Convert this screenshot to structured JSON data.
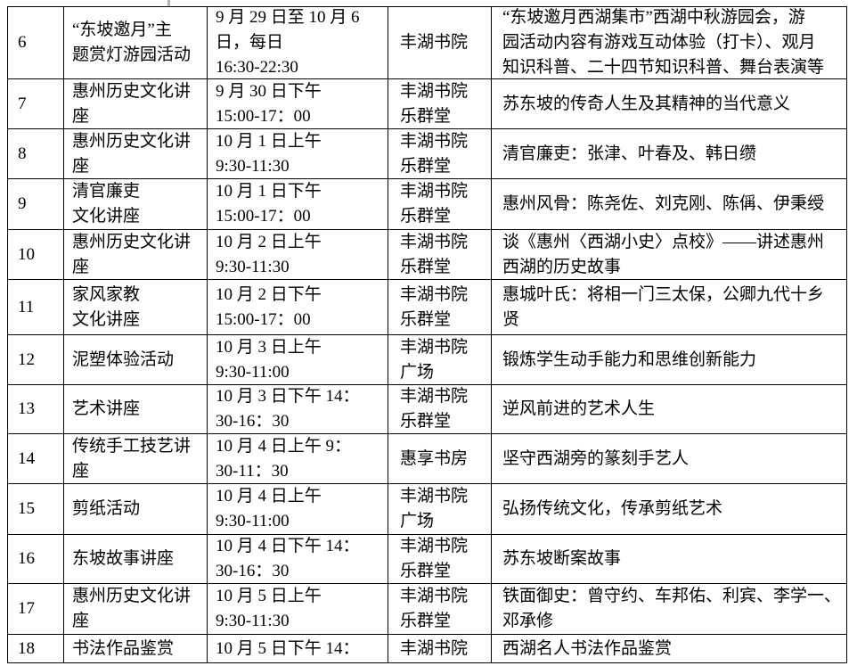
{
  "colors": {
    "background": "#ffffff",
    "text": "#000000",
    "table_border": "#000000"
  },
  "table": {
    "rows": [
      {
        "num": "6",
        "activity": [
          "“东坡邀月”主",
          "题赏灯游园活动"
        ],
        "time": [
          "9 月 29 日至 10 月 6",
          "日，每日",
          "16:30-22:30"
        ],
        "place": [
          "丰湖书院"
        ],
        "desc": [
          "“东坡邀月西湖集市”西湖中秋游园会，游",
          "园活动内容有游戏互动体验（打卡）、观月",
          "知识科普、二十四节知识科普、舞台表演等"
        ]
      },
      {
        "num": "7",
        "activity": [
          "惠州历史文化讲",
          "座"
        ],
        "time": [
          "9 月 30 日下午",
          "15:00-17：00"
        ],
        "place": [
          "丰湖书院",
          "乐群堂"
        ],
        "desc": [
          "苏东坡的传奇人生及其精神的当代意义"
        ]
      },
      {
        "num": "8",
        "activity": [
          "惠州历史文化讲",
          "座"
        ],
        "time": [
          "10 月 1 日上午",
          "9:30-11:30"
        ],
        "place": [
          "丰湖书院",
          "乐群堂"
        ],
        "desc": [
          "清官廉吏：张津、叶春及、韩日缵"
        ]
      },
      {
        "num": "9",
        "activity": [
          "清官廉吏",
          "文化讲座"
        ],
        "time": [
          "10 月 1 日下午",
          "15:00-17：00"
        ],
        "place": [
          "丰湖书院",
          "乐群堂"
        ],
        "desc": [
          "惠州风骨：陈尧佐、刘克刚、陈偁、伊秉绶"
        ]
      },
      {
        "num": "10",
        "activity": [
          "惠州历史文化讲",
          "座"
        ],
        "time": [
          "10 月 2 日上午",
          "9:30-11:30"
        ],
        "place": [
          "丰湖书院",
          "乐群堂"
        ],
        "desc": [
          "谈《惠州〈西湖小史〉点校》——讲述惠州",
          "西湖的历史故事"
        ]
      },
      {
        "num": "11",
        "activity": [
          "家风家教",
          "文化讲座"
        ],
        "time": [
          "10 月 2 日下午",
          "15:00-17：00"
        ],
        "place": [
          "丰湖书院",
          "乐群堂"
        ],
        "desc": [
          "惠城叶氏：将相一门三太保，公卿九代十乡",
          "贤"
        ]
      },
      {
        "num": "12",
        "activity": [
          "泥塑体验活动"
        ],
        "time": [
          "10 月 3 日上午",
          "9:30-11:00"
        ],
        "place": [
          "丰湖书院",
          "广场"
        ],
        "desc": [
          "锻炼学生动手能力和思维创新能力"
        ]
      },
      {
        "num": "13",
        "activity": [
          "艺术讲座"
        ],
        "time": [
          "10 月 3 日下午 14：",
          "30-16：30"
        ],
        "place": [
          "丰湖书院",
          "乐群堂"
        ],
        "desc": [
          "逆风前进的艺术人生"
        ]
      },
      {
        "num": "14",
        "activity": [
          "传统手工技艺讲",
          "座"
        ],
        "time": [
          "10 月 4 日上午 9：",
          "30-11：30"
        ],
        "place": [
          "惠享书房"
        ],
        "desc": [
          "坚守西湖旁的篆刻手艺人"
        ]
      },
      {
        "num": "15",
        "activity": [
          "剪纸活动"
        ],
        "time": [
          "10 月 4 日上午",
          "9:30-11:00"
        ],
        "place": [
          "丰湖书院",
          "广场"
        ],
        "desc": [
          "弘扬传统文化，传承剪纸艺术"
        ]
      },
      {
        "num": "16",
        "activity": [
          "东坡故事讲座"
        ],
        "time": [
          "10 月 4 日下午 14：",
          "30-16：30"
        ],
        "place": [
          "丰湖书院",
          "乐群堂"
        ],
        "desc": [
          "苏东坡断案故事"
        ]
      },
      {
        "num": "17",
        "activity": [
          "惠州历史文化讲",
          "座"
        ],
        "time": [
          "10 月 5 日上午",
          "9:30-11:30"
        ],
        "place": [
          "丰湖书院",
          "乐群堂"
        ],
        "desc": [
          "铁面御史：曾守约、车邦佑、利宾、李学一、",
          "邓承修"
        ]
      },
      {
        "num": "18",
        "activity": [
          "书法作品鉴赏"
        ],
        "time": [
          "10 月 5 日下午 14："
        ],
        "place": [
          "丰湖书院"
        ],
        "desc": [
          "西湖名人书法作品鉴赏"
        ]
      }
    ]
  }
}
